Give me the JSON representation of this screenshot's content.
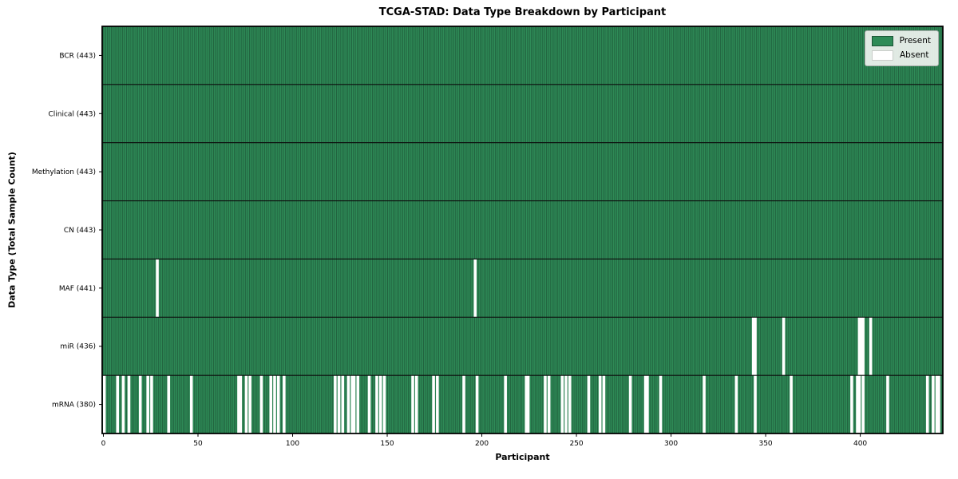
{
  "chart_data": {
    "type": "heatmap",
    "title": "TCGA-STAD: Data Type Breakdown by Participant",
    "xlabel": "Participant",
    "ylabel": "Data Type (Total Sample Count)",
    "n_participants": 443,
    "x_ticks": [
      0,
      50,
      100,
      150,
      200,
      250,
      300,
      350,
      400
    ],
    "grid": false,
    "legend_position": "upper right",
    "legend": [
      {
        "label": "Present",
        "color": "#2e8b57"
      },
      {
        "label": "Absent",
        "color": "#ffffff"
      }
    ],
    "colors": {
      "present": "#2e8b57",
      "present_edge": "#1c5436",
      "absent": "#ffffff",
      "separator": "#0d0d0d",
      "spine": "#000000"
    },
    "rows": [
      {
        "label": "BCR (443)",
        "data_type": "BCR",
        "present_count": 443,
        "absent_participants": []
      },
      {
        "label": "Clinical (443)",
        "data_type": "Clinical",
        "present_count": 443,
        "absent_participants": []
      },
      {
        "label": "Methylation (443)",
        "data_type": "Methylation",
        "present_count": 443,
        "absent_participants": []
      },
      {
        "label": "CN (443)",
        "data_type": "CN",
        "present_count": 443,
        "absent_participants": []
      },
      {
        "label": "MAF (441)",
        "data_type": "MAF",
        "present_count": 441,
        "absent_participants": [
          28,
          196
        ]
      },
      {
        "label": "miR (436)",
        "data_type": "miR",
        "present_count": 436,
        "absent_participants": [
          343,
          344,
          359,
          399,
          400,
          401,
          405
        ]
      },
      {
        "label": "mRNA (380)",
        "data_type": "mRNA",
        "present_count": 380,
        "absent_participants": [
          0,
          7,
          10,
          13,
          19,
          23,
          25,
          34,
          46,
          71,
          72,
          75,
          77,
          83,
          88,
          90,
          92,
          95,
          122,
          124,
          126,
          129,
          131,
          132,
          134,
          140,
          144,
          146,
          148,
          163,
          165,
          174,
          176,
          190,
          197,
          212,
          223,
          224,
          233,
          235,
          242,
          244,
          246,
          256,
          262,
          264,
          278,
          286,
          287,
          294,
          317,
          334,
          344,
          363,
          395,
          398,
          399,
          401,
          414,
          435,
          438,
          440,
          441
        ]
      }
    ]
  }
}
